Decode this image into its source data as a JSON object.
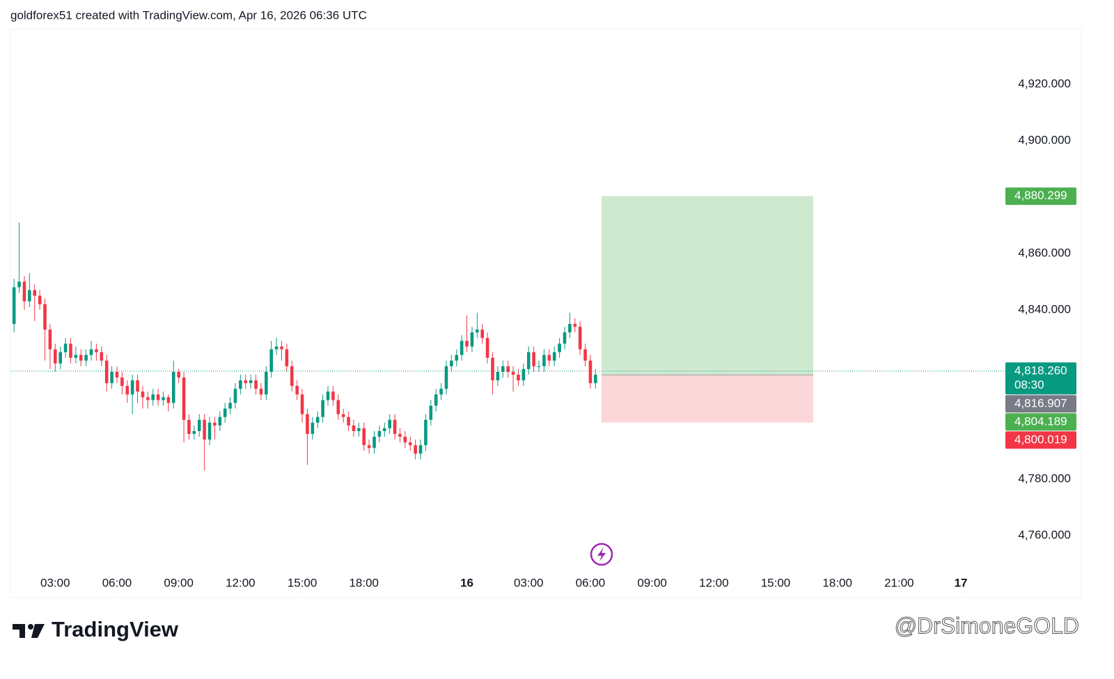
{
  "header": "goldforex51 created with TradingView.com, Apr 16, 2026 06:36 UTC",
  "brand": "TradingView",
  "watermark": "@DrSimoneGOLD",
  "chart_data": {
    "type": "candlestick",
    "up_color": "#089981",
    "down_color": "#f23645",
    "ylim": [
      4748.6,
      4939.5
    ],
    "yticks": [
      {
        "value": 4760,
        "label": "4,760.000"
      },
      {
        "value": 4780,
        "label": "4,780.000"
      },
      {
        "value": 4840,
        "label": "4,840.000"
      },
      {
        "value": 4860,
        "label": "4,860.000"
      },
      {
        "value": 4900,
        "label": "4,900.000"
      },
      {
        "value": 4920,
        "label": "4,920.000"
      }
    ],
    "xlim": [
      -0.7,
      207.4
    ],
    "xticks": [
      {
        "value": 8,
        "label": "03:00"
      },
      {
        "value": 20,
        "label": "06:00"
      },
      {
        "value": 32,
        "label": "09:00"
      },
      {
        "value": 44,
        "label": "12:00"
      },
      {
        "value": 56,
        "label": "15:00"
      },
      {
        "value": 68,
        "label": "18:00"
      },
      {
        "value": 88,
        "label": "16"
      },
      {
        "value": 100,
        "label": "03:00"
      },
      {
        "value": 112,
        "label": "06:00"
      },
      {
        "value": 124,
        "label": "09:00"
      },
      {
        "value": 136,
        "label": "12:00"
      },
      {
        "value": 148,
        "label": "15:00"
      },
      {
        "value": 160,
        "label": "18:00"
      },
      {
        "value": 172,
        "label": "21:00"
      },
      {
        "value": 184,
        "label": "17"
      }
    ],
    "ohlc": [
      [
        4835,
        4851,
        4832,
        4848
      ],
      [
        4848,
        4871,
        4846,
        4850
      ],
      [
        4850,
        4852,
        4840,
        4843
      ],
      [
        4843,
        4853,
        4841,
        4847
      ],
      [
        4847,
        4849,
        4836,
        4845
      ],
      [
        4845,
        4847,
        4840,
        4842
      ],
      [
        4842,
        4844,
        4822,
        4833
      ],
      [
        4833,
        4835,
        4819,
        4826
      ],
      [
        4826,
        4828,
        4818,
        4821
      ],
      [
        4821,
        4827,
        4819,
        4825
      ],
      [
        4825,
        4830,
        4823,
        4828
      ],
      [
        4828,
        4830,
        4821,
        4823
      ],
      [
        4823,
        4827,
        4821,
        4824
      ],
      [
        4824,
        4826,
        4820,
        4822
      ],
      [
        4822,
        4826,
        4820,
        4824
      ],
      [
        4824,
        4829,
        4822,
        4826
      ],
      [
        4826,
        4828,
        4822,
        4825
      ],
      [
        4825,
        4827,
        4820,
        4822
      ],
      [
        4822,
        4824,
        4811,
        4814
      ],
      [
        4814,
        4820,
        4812,
        4818
      ],
      [
        4818,
        4820,
        4814,
        4816
      ],
      [
        4816,
        4818,
        4810,
        4813
      ],
      [
        4813,
        4815,
        4807,
        4810
      ],
      [
        4810,
        4817,
        4803,
        4815
      ],
      [
        4815,
        4817,
        4807,
        4811
      ],
      [
        4811,
        4813,
        4805,
        4809
      ],
      [
        4809,
        4811,
        4805,
        4808
      ],
      [
        4808,
        4812,
        4806,
        4810
      ],
      [
        4810,
        4812,
        4806,
        4808
      ],
      [
        4808,
        4811,
        4806,
        4809
      ],
      [
        4809,
        4810,
        4804,
        4807
      ],
      [
        4807,
        4822,
        4805,
        4818
      ],
      [
        4818,
        4819,
        4814,
        4816
      ],
      [
        4816,
        4818,
        4793,
        4801
      ],
      [
        4801,
        4803,
        4794,
        4796
      ],
      [
        4796,
        4799,
        4794,
        4797
      ],
      [
        4797,
        4803,
        4795,
        4801
      ],
      [
        4801,
        4803,
        4783,
        4794
      ],
      [
        4794,
        4802,
        4792,
        4800
      ],
      [
        4800,
        4802,
        4794,
        4799
      ],
      [
        4799,
        4804,
        4797,
        4802
      ],
      [
        4802,
        4807,
        4800,
        4805
      ],
      [
        4805,
        4809,
        4803,
        4807
      ],
      [
        4807,
        4814,
        4805,
        4812
      ],
      [
        4812,
        4817,
        4810,
        4815
      ],
      [
        4815,
        4817,
        4812,
        4814
      ],
      [
        4814,
        4817,
        4812,
        4815
      ],
      [
        4815,
        4817,
        4810,
        4812
      ],
      [
        4812,
        4814,
        4808,
        4810
      ],
      [
        4810,
        4820,
        4808,
        4818
      ],
      [
        4818,
        4829,
        4816,
        4826
      ],
      [
        4826,
        4830,
        4824,
        4827
      ],
      [
        4827,
        4829,
        4822,
        4826
      ],
      [
        4826,
        4828,
        4818,
        4820
      ],
      [
        4820,
        4822,
        4811,
        4813
      ],
      [
        4813,
        4815,
        4808,
        4810
      ],
      [
        4810,
        4812,
        4800,
        4803
      ],
      [
        4803,
        4805,
        4785,
        4796
      ],
      [
        4796,
        4802,
        4794,
        4800
      ],
      [
        4800,
        4804,
        4798,
        4802
      ],
      [
        4802,
        4810,
        4800,
        4808
      ],
      [
        4808,
        4813,
        4806,
        4811
      ],
      [
        4811,
        4813,
        4806,
        4808
      ],
      [
        4808,
        4810,
        4801,
        4803
      ],
      [
        4803,
        4805,
        4800,
        4802
      ],
      [
        4802,
        4804,
        4797,
        4799
      ],
      [
        4799,
        4801,
        4795,
        4797
      ],
      [
        4797,
        4800,
        4795,
        4798
      ],
      [
        4798,
        4800,
        4790,
        4792
      ],
      [
        4792,
        4794,
        4789,
        4791
      ],
      [
        4791,
        4797,
        4789,
        4795
      ],
      [
        4795,
        4799,
        4793,
        4797
      ],
      [
        4797,
        4800,
        4795,
        4798
      ],
      [
        4798,
        4803,
        4796,
        4801
      ],
      [
        4801,
        4803,
        4794,
        4796
      ],
      [
        4796,
        4798,
        4793,
        4795
      ],
      [
        4795,
        4797,
        4791,
        4793
      ],
      [
        4793,
        4795,
        4790,
        4792
      ],
      [
        4792,
        4794,
        4787,
        4789
      ],
      [
        4789,
        4794,
        4787,
        4792
      ],
      [
        4792,
        4803,
        4790,
        4801
      ],
      [
        4801,
        4808,
        4799,
        4806
      ],
      [
        4806,
        4812,
        4804,
        4810
      ],
      [
        4810,
        4814,
        4808,
        4812
      ],
      [
        4812,
        4822,
        4810,
        4820
      ],
      [
        4820,
        4824,
        4818,
        4822
      ],
      [
        4822,
        4826,
        4820,
        4824
      ],
      [
        4824,
        4831,
        4822,
        4829
      ],
      [
        4829,
        4838,
        4825,
        4827
      ],
      [
        4827,
        4834,
        4825,
        4832
      ],
      [
        4832,
        4839,
        4830,
        4833
      ],
      [
        4833,
        4835,
        4828,
        4830
      ],
      [
        4830,
        4832,
        4821,
        4823
      ],
      [
        4823,
        4825,
        4810,
        4815
      ],
      [
        4815,
        4820,
        4813,
        4818
      ],
      [
        4818,
        4822,
        4816,
        4820
      ],
      [
        4820,
        4822,
        4816,
        4818
      ],
      [
        4818,
        4820,
        4811,
        4817
      ],
      [
        4817,
        4819,
        4813,
        4815
      ],
      [
        4815,
        4821,
        4813,
        4819
      ],
      [
        4819,
        4827,
        4817,
        4825
      ],
      [
        4825,
        4827,
        4818,
        4820
      ],
      [
        4820,
        4822,
        4818,
        4820
      ],
      [
        4820,
        4826,
        4818,
        4824
      ],
      [
        4824,
        4826,
        4820,
        4822
      ],
      [
        4822,
        4827,
        4820,
        4825
      ],
      [
        4825,
        4830,
        4823,
        4828
      ],
      [
        4828,
        4834,
        4826,
        4832
      ],
      [
        4832,
        4839,
        4830,
        4835
      ],
      [
        4835,
        4837,
        4832,
        4834
      ],
      [
        4834,
        4836,
        4824,
        4826
      ],
      [
        4826,
        4828,
        4820,
        4822
      ],
      [
        4822,
        4824,
        4812,
        4814
      ],
      [
        4814,
        4819,
        4812,
        4817
      ]
    ],
    "position": {
      "target": 4880.299,
      "entry": 4816.907,
      "stop": 4800.019
    },
    "price_labels": [
      {
        "value": 4880.299,
        "label": "4,880.299",
        "color": "#4caf50"
      },
      {
        "value": 4818.26,
        "label": "4,818.260",
        "countdown": "08:30",
        "color": "#089981"
      },
      {
        "value": 4816.907,
        "label": "4,816.907",
        "color": "#787b86"
      },
      {
        "value": 4804.189,
        "label": "4,804.189",
        "color": "#4caf50"
      },
      {
        "value": 4800.019,
        "label": "4,800.019",
        "color": "#f23645"
      }
    ]
  }
}
